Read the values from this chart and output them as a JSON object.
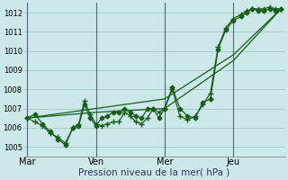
{
  "background_color": "#cce8e8",
  "grid_color": "#aacccc",
  "line_color": "#1a5c1a",
  "xlabel": "Pression niveau de la mer( hPa )",
  "ylim": [
    1004.5,
    1012.5
  ],
  "yticks": [
    1005,
    1006,
    1007,
    1008,
    1009,
    1010,
    1011,
    1012
  ],
  "xtick_labels": [
    "Mar",
    "Ven",
    "Mer",
    "Jeu"
  ],
  "xtick_positions": [
    0,
    36,
    72,
    108
  ],
  "xlim": [
    -2,
    135
  ],
  "vline_positions": [
    0,
    36,
    72,
    108
  ],
  "vline_color": "#556677",
  "series1_x": [
    0,
    4,
    8,
    12,
    16,
    20,
    24,
    27,
    30,
    33,
    36,
    39,
    42,
    45,
    48,
    51,
    54,
    57,
    60,
    63,
    66,
    69,
    72,
    76,
    80,
    84,
    88,
    92,
    96,
    100,
    104,
    108,
    112,
    115,
    118,
    121,
    124,
    127,
    130,
    133
  ],
  "series1_y": [
    1006.5,
    1006.7,
    1006.2,
    1005.8,
    1005.4,
    1005.1,
    1006.0,
    1006.1,
    1007.2,
    1006.5,
    1006.1,
    1006.5,
    1006.6,
    1006.8,
    1006.8,
    1007.0,
    1006.8,
    1006.6,
    1006.5,
    1007.0,
    1007.0,
    1006.5,
    1007.0,
    1008.1,
    1007.0,
    1006.6,
    1006.5,
    1007.3,
    1007.5,
    1010.1,
    1011.1,
    1011.6,
    1011.8,
    1012.0,
    1012.2,
    1012.1,
    1012.1,
    1012.2,
    1012.1,
    1012.2
  ],
  "series1_marker": "D",
  "series1_markersize": 2.5,
  "series2_x": [
    0,
    4,
    8,
    12,
    16,
    20,
    24,
    27,
    30,
    33,
    36,
    39,
    42,
    45,
    48,
    51,
    54,
    57,
    60,
    63,
    66,
    69,
    72,
    76,
    80,
    84,
    88,
    92,
    96,
    100,
    104,
    108,
    112,
    115,
    118,
    121,
    124,
    127,
    130,
    133
  ],
  "series2_y": [
    1006.5,
    1006.3,
    1006.1,
    1005.7,
    1005.5,
    1005.2,
    1006.0,
    1006.2,
    1007.4,
    1006.7,
    1006.2,
    1006.1,
    1006.2,
    1006.3,
    1006.3,
    1006.8,
    1006.6,
    1006.3,
    1006.2,
    1006.5,
    1007.0,
    1006.8,
    1007.0,
    1008.0,
    1006.6,
    1006.4,
    1006.6,
    1007.2,
    1007.8,
    1010.2,
    1011.2,
    1011.7,
    1011.9,
    1012.1,
    1012.2,
    1012.2,
    1012.2,
    1012.3,
    1012.2,
    1012.2
  ],
  "series2_marker": "+",
  "series2_markersize": 4,
  "series3_x": [
    0,
    36,
    72,
    108,
    133
  ],
  "series3_y": [
    1006.5,
    1006.8,
    1007.0,
    1009.5,
    1012.2
  ],
  "series4_x": [
    0,
    36,
    72,
    108,
    133
  ],
  "series4_y": [
    1006.5,
    1007.0,
    1007.5,
    1009.8,
    1012.2
  ],
  "ytick_fontsize": 6,
  "xtick_fontsize": 7,
  "xlabel_fontsize": 7.5,
  "xlabel_color": "#333355"
}
